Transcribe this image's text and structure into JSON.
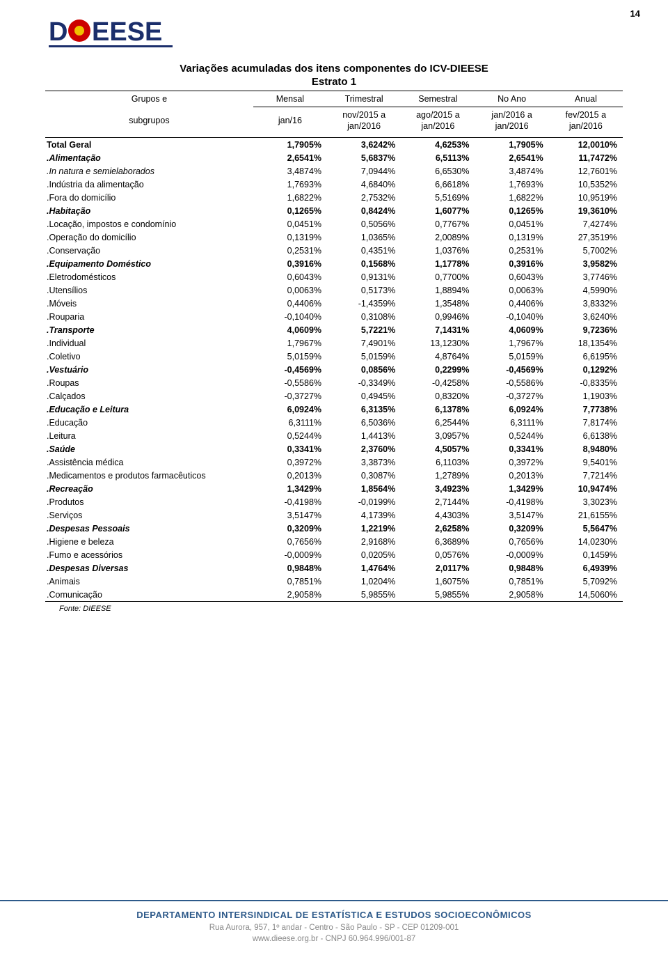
{
  "page_number": "14",
  "logo": {
    "text_left": "D",
    "text_right": "EESE",
    "color_text": "#1b2e6b",
    "color_circle_outer": "#cc0000",
    "color_circle_inner": "#f0c000"
  },
  "report": {
    "title": "Variações acumuladas dos itens componentes do ICV-DIEESE",
    "subtitle": "Estrato 1",
    "header_row1": [
      "Grupos e",
      "Mensal",
      "Trimestral",
      "Semestral",
      "No Ano",
      "Anual"
    ],
    "header_row2": [
      "subgrupos",
      "jan/16",
      "nov/2015 a\njan/2016",
      "ago/2015 a\njan/2016",
      "jan/2016 a\njan/2016",
      "fev/2015 a\njan/2016"
    ],
    "rows": [
      {
        "style": "bold",
        "label": "Total Geral",
        "v": [
          "1,7905%",
          "3,6242%",
          "4,6253%",
          "1,7905%",
          "12,0010%"
        ]
      },
      {
        "style": "bold italic",
        "label": ".Alimentação",
        "v": [
          "2,6541%",
          "5,6837%",
          "6,5113%",
          "2,6541%",
          "11,7472%"
        ]
      },
      {
        "style": "italic",
        "label": ".In natura e semielaborados",
        "v": [
          "3,4874%",
          "7,0944%",
          "6,6530%",
          "3,4874%",
          "12,7601%"
        ]
      },
      {
        "style": "",
        "label": ".Indústria da alimentação",
        "v": [
          "1,7693%",
          "4,6840%",
          "6,6618%",
          "1,7693%",
          "10,5352%"
        ]
      },
      {
        "style": "",
        "label": ".Fora do domicílio",
        "v": [
          "1,6822%",
          "2,7532%",
          "5,5169%",
          "1,6822%",
          "10,9519%"
        ]
      },
      {
        "style": "bold italic",
        "label": ".Habitação",
        "v": [
          "0,1265%",
          "0,8424%",
          "1,6077%",
          "0,1265%",
          "19,3610%"
        ]
      },
      {
        "style": "",
        "label": ".Locação, impostos e condomínio",
        "v": [
          "0,0451%",
          "0,5056%",
          "0,7767%",
          "0,0451%",
          "7,4274%"
        ]
      },
      {
        "style": "",
        "label": ".Operação do domicílio",
        "v": [
          "0,1319%",
          "1,0365%",
          "2,0089%",
          "0,1319%",
          "27,3519%"
        ]
      },
      {
        "style": "",
        "label": ".Conservação",
        "v": [
          "0,2531%",
          "0,4351%",
          "1,0376%",
          "0,2531%",
          "5,7002%"
        ]
      },
      {
        "style": "bold italic",
        "label": ".Equipamento Doméstico",
        "v": [
          "0,3916%",
          "0,1568%",
          "1,1778%",
          "0,3916%",
          "3,9582%"
        ]
      },
      {
        "style": "",
        "label": ".Eletrodomésticos",
        "v": [
          "0,6043%",
          "0,9131%",
          "0,7700%",
          "0,6043%",
          "3,7746%"
        ]
      },
      {
        "style": "",
        "label": ".Utensílios",
        "v": [
          "0,0063%",
          "0,5173%",
          "1,8894%",
          "0,0063%",
          "4,5990%"
        ]
      },
      {
        "style": "",
        "label": ".Móveis",
        "v": [
          "0,4406%",
          "-1,4359%",
          "1,3548%",
          "0,4406%",
          "3,8332%"
        ]
      },
      {
        "style": "",
        "label": ".Rouparia",
        "v": [
          "-0,1040%",
          "0,3108%",
          "0,9946%",
          "-0,1040%",
          "3,6240%"
        ]
      },
      {
        "style": "bold italic",
        "label": ".Transporte",
        "v": [
          "4,0609%",
          "5,7221%",
          "7,1431%",
          "4,0609%",
          "9,7236%"
        ]
      },
      {
        "style": "",
        "label": ".Individual",
        "v": [
          "1,7967%",
          "7,4901%",
          "13,1230%",
          "1,7967%",
          "18,1354%"
        ]
      },
      {
        "style": "",
        "label": ".Coletivo",
        "v": [
          "5,0159%",
          "5,0159%",
          "4,8764%",
          "5,0159%",
          "6,6195%"
        ]
      },
      {
        "style": "bold italic",
        "label": ".Vestuário",
        "v": [
          "-0,4569%",
          "0,0856%",
          "0,2299%",
          "-0,4569%",
          "0,1292%"
        ]
      },
      {
        "style": "",
        "label": ".Roupas",
        "v": [
          "-0,5586%",
          "-0,3349%",
          "-0,4258%",
          "-0,5586%",
          "-0,8335%"
        ]
      },
      {
        "style": "",
        "label": ".Calçados",
        "v": [
          "-0,3727%",
          "0,4945%",
          "0,8320%",
          "-0,3727%",
          "1,1903%"
        ]
      },
      {
        "style": "bold italic",
        "label": ".Educação e Leitura",
        "v": [
          "6,0924%",
          "6,3135%",
          "6,1378%",
          "6,0924%",
          "7,7738%"
        ]
      },
      {
        "style": "",
        "label": ".Educação",
        "v": [
          "6,3111%",
          "6,5036%",
          "6,2544%",
          "6,3111%",
          "7,8174%"
        ]
      },
      {
        "style": "",
        "label": ".Leitura",
        "v": [
          "0,5244%",
          "1,4413%",
          "3,0957%",
          "0,5244%",
          "6,6138%"
        ]
      },
      {
        "style": "bold italic",
        "label": ".Saúde",
        "v": [
          "0,3341%",
          "2,3760%",
          "4,5057%",
          "0,3341%",
          "8,9480%"
        ]
      },
      {
        "style": "",
        "label": ".Assistência médica",
        "v": [
          "0,3972%",
          "3,3873%",
          "6,1103%",
          "0,3972%",
          "9,5401%"
        ]
      },
      {
        "style": "",
        "label": ".Medicamentos e produtos farmacêuticos",
        "v": [
          "0,2013%",
          "0,3087%",
          "1,2789%",
          "0,2013%",
          "7,7214%"
        ]
      },
      {
        "style": "bold italic",
        "label": ".Recreação",
        "v": [
          "1,3429%",
          "1,8564%",
          "3,4923%",
          "1,3429%",
          "10,9474%"
        ]
      },
      {
        "style": "",
        "label": ".Produtos",
        "v": [
          "-0,4198%",
          "-0,0199%",
          "2,7144%",
          "-0,4198%",
          "3,3023%"
        ]
      },
      {
        "style": "",
        "label": ".Serviços",
        "v": [
          "3,5147%",
          "4,1739%",
          "4,4303%",
          "3,5147%",
          "21,6155%"
        ]
      },
      {
        "style": "bold italic",
        "label": ".Despesas Pessoais",
        "v": [
          "0,3209%",
          "1,2219%",
          "2,6258%",
          "0,3209%",
          "5,5647%"
        ]
      },
      {
        "style": "",
        "label": ".Higiene e beleza",
        "v": [
          "0,7656%",
          "2,9168%",
          "6,3689%",
          "0,7656%",
          "14,0230%"
        ]
      },
      {
        "style": "",
        "label": ".Fumo e acessórios",
        "v": [
          "-0,0009%",
          "0,0205%",
          "0,0576%",
          "-0,0009%",
          "0,1459%"
        ]
      },
      {
        "style": "bold italic",
        "label": ".Despesas Diversas",
        "v": [
          "0,9848%",
          "1,4764%",
          "2,0117%",
          "0,9848%",
          "6,4939%"
        ]
      },
      {
        "style": "",
        "label": ".Animais",
        "v": [
          "0,7851%",
          "1,0204%",
          "1,6075%",
          "0,7851%",
          "5,7092%"
        ]
      },
      {
        "style": "",
        "label": ".Comunicação",
        "v": [
          "2,9058%",
          "5,9855%",
          "5,9855%",
          "2,9058%",
          "14,5060%"
        ]
      }
    ],
    "source": "Fonte: DIEESE"
  },
  "footer": {
    "org": "DEPARTAMENTO INTERSINDICAL DE ESTATÍSTICA E ESTUDOS SOCIOECONÔMICOS",
    "address": "Rua Aurora, 957, 1º andar - Centro - São Paulo - SP - CEP 01209-001",
    "web": "www.dieese.org.br - CNPJ 60.964.996/001-87"
  }
}
